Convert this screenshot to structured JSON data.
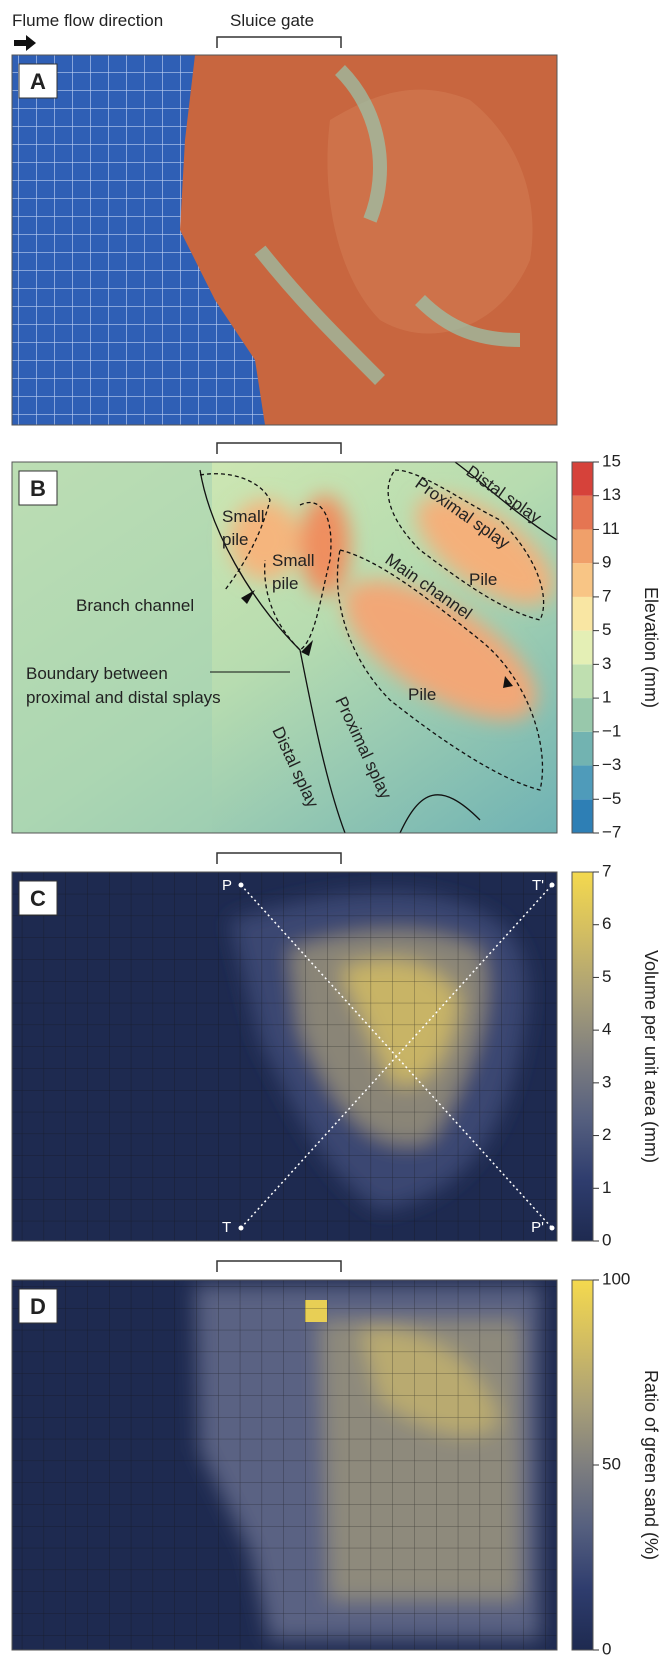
{
  "header": {
    "flow_label": "Flume flow direction",
    "gate_label": "Sluice gate"
  },
  "panels": [
    {
      "label": "A"
    },
    {
      "label": "B",
      "annotations": {
        "small_pile_1": [
          "Small",
          "pile"
        ],
        "small_pile_2": [
          "Small",
          "pile"
        ],
        "branch_channel": "Branch channel",
        "boundary": [
          "Boundary between",
          "proximal and distal splays"
        ],
        "distal_splay_left": "Distal splay",
        "proximal_splay_left": "Proximal splay",
        "pile_center": "Pile",
        "main_channel": "Main channel",
        "pile_right": "Pile",
        "proximal_splay_right": "Proximal splay",
        "distal_splay_right": "Distal splay"
      },
      "colorbar": {
        "title": "Elevation (mm)",
        "lim": [
          -7,
          15
        ],
        "ticks": [
          15,
          13,
          11,
          9,
          7,
          5,
          3,
          1,
          {
            "value": -1,
            "label": "−1"
          },
          {
            "value": -3,
            "label": "−3"
          },
          {
            "value": -5,
            "label": "−5"
          },
          {
            "value": -7,
            "label": "−7"
          }
        ],
        "colors": [
          "#2e7fb5",
          "#4f9bba",
          "#72b3b1",
          "#98c8ab",
          "#bfdfb0",
          "#e4efb5",
          "#f9e6a3",
          "#f8c585",
          "#f0a06a",
          "#e57552",
          "#d6423a"
        ]
      }
    },
    {
      "label": "C",
      "points": [
        "P",
        "T'",
        "T",
        "P'"
      ],
      "colorbar": {
        "title": "Volume per unit area (mm)",
        "lim": [
          0,
          7
        ],
        "ticks": [
          0,
          1,
          2,
          3,
          4,
          5,
          6,
          7
        ],
        "colors": [
          "#1e2a50",
          "#2f3d6e",
          "#56607f",
          "#7f7f7f",
          "#aaa077",
          "#d2bd62",
          "#f4d94e"
        ]
      }
    },
    {
      "label": "D",
      "colorbar": {
        "title": "Ratio of green sand (%)",
        "lim": [
          0,
          100
        ],
        "ticks": [
          0,
          50,
          100
        ],
        "colors": [
          "#1e2a50",
          "#2f3d6e",
          "#56607f",
          "#7f7f7f",
          "#aaa077",
          "#d2bd62",
          "#f4d94e"
        ]
      }
    }
  ]
}
